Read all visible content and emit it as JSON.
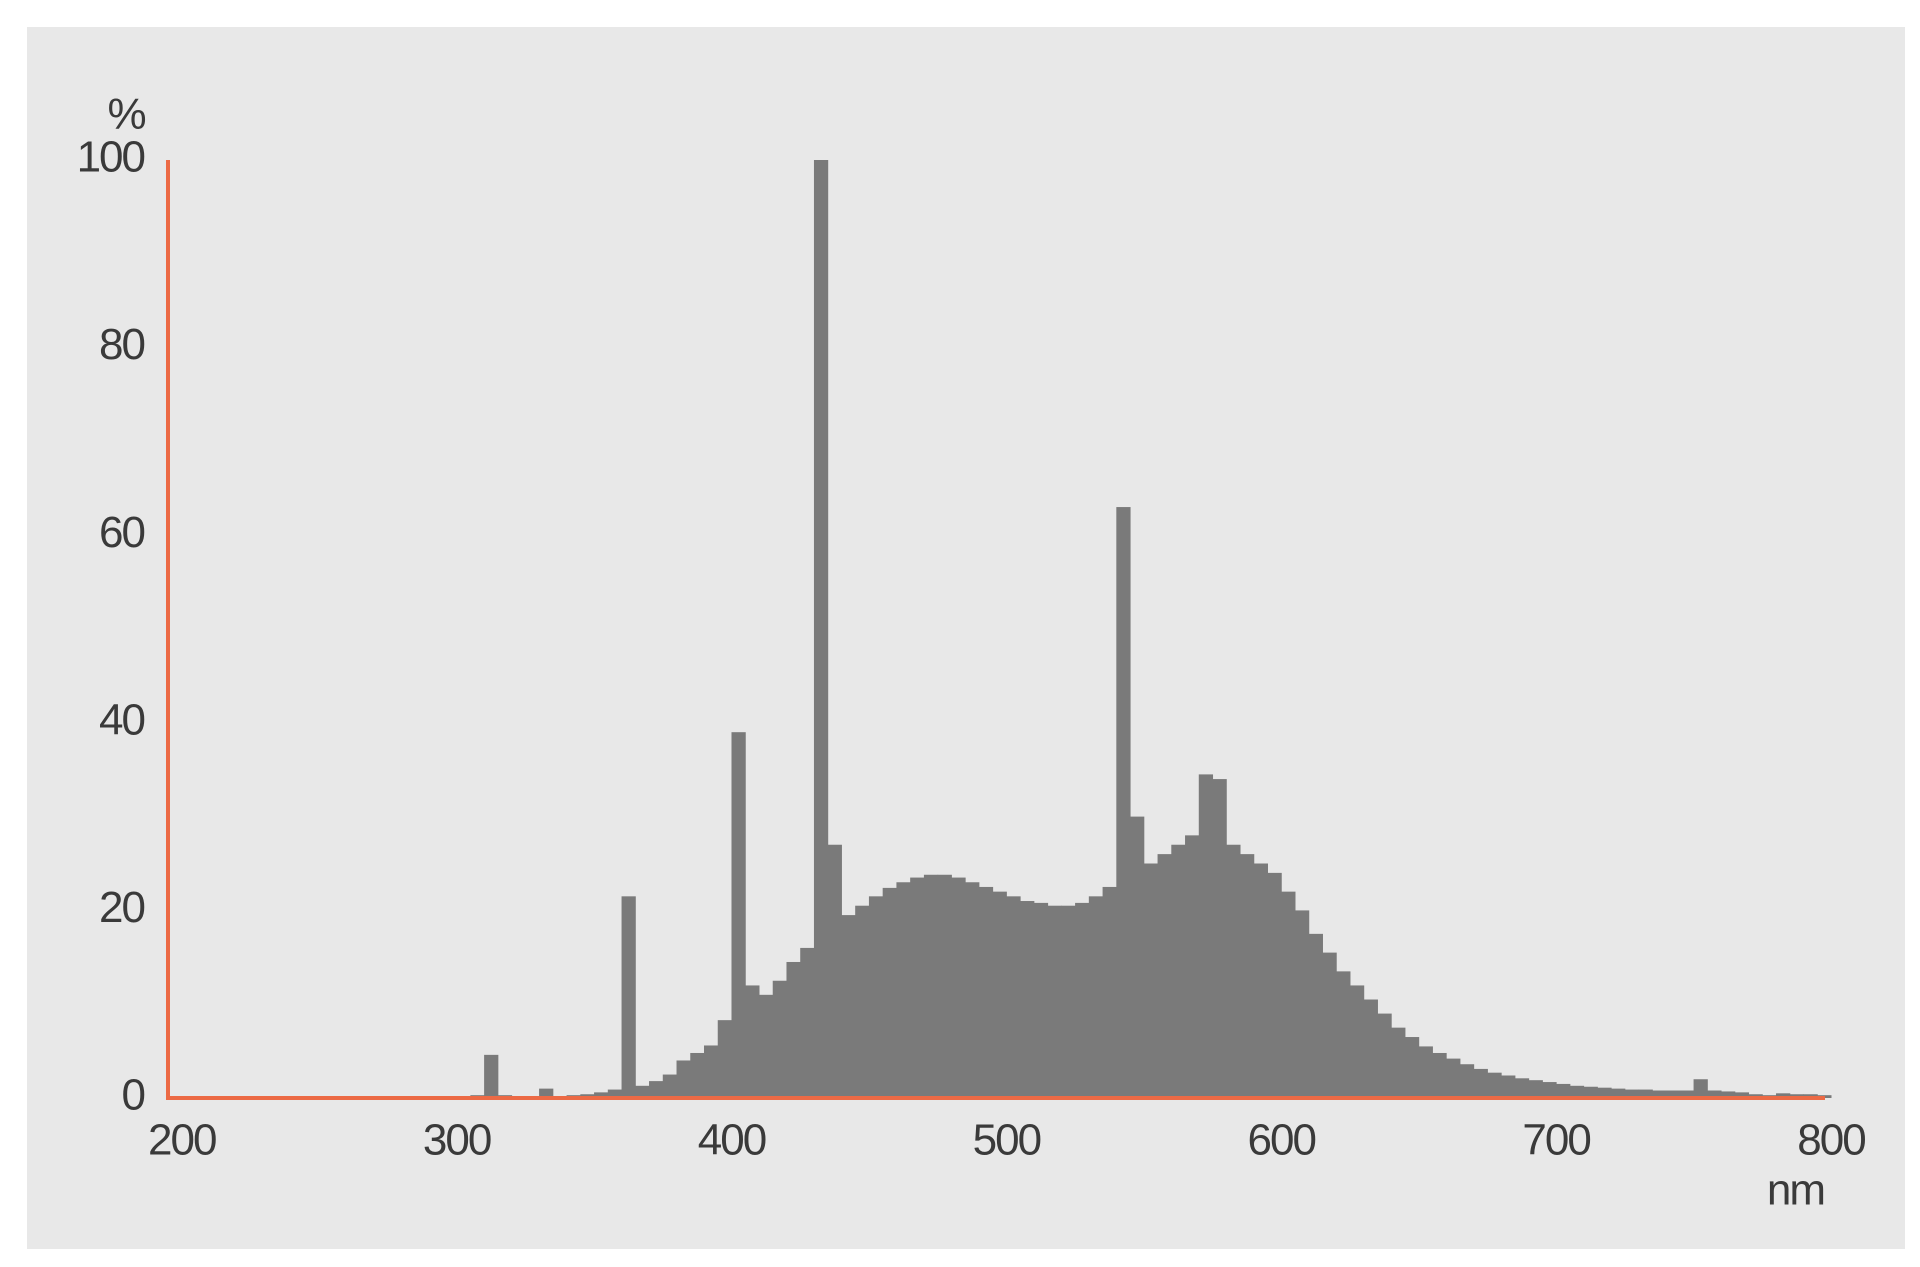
{
  "chart_data": {
    "type": "histogram",
    "ylabel": "%",
    "xlabel": "nm",
    "color": "#7a7a7a",
    "axis_color": "#ec6a45",
    "bins": [
      300,
      305,
      310,
      315,
      320,
      325,
      330,
      335,
      340,
      345,
      350,
      355,
      360,
      365,
      370,
      375,
      380,
      385,
      390,
      395,
      400,
      405,
      410,
      415,
      420,
      425,
      430,
      435,
      440,
      445,
      450,
      455,
      460,
      465,
      470,
      475,
      480,
      485,
      490,
      495,
      500,
      505,
      510,
      515,
      520,
      525,
      530,
      535,
      540,
      545,
      550,
      555,
      560,
      565,
      570,
      575,
      580,
      585,
      590,
      595,
      600,
      605,
      610,
      615,
      620,
      625,
      630,
      635,
      640,
      645,
      650,
      655,
      660,
      665,
      670,
      675,
      680,
      685,
      690,
      695,
      700,
      705,
      710,
      715,
      720,
      725,
      730,
      735,
      740,
      745,
      750,
      755,
      760,
      765,
      770,
      775,
      780,
      785,
      790,
      795,
      800
    ],
    "values": [
      0.2,
      0.3,
      4.6,
      0.3,
      0.2,
      0.2,
      1.0,
      0.2,
      0.3,
      0.4,
      0.6,
      0.9,
      21.5,
      1.3,
      1.8,
      2.5,
      4,
      4.8,
      5.6,
      8.3,
      39,
      12,
      11,
      12.5,
      14.5,
      16,
      100,
      27,
      19.5,
      20.5,
      21.5,
      22.4,
      23,
      23.5,
      23.8,
      23.8,
      23.5,
      23,
      22.5,
      22,
      21.5,
      21,
      20.8,
      20.5,
      20.5,
      20.8,
      21.5,
      22.5,
      63,
      30,
      25,
      26,
      27,
      28,
      34.5,
      34,
      27,
      26,
      25,
      24,
      22,
      20,
      17.5,
      15.5,
      13.5,
      12,
      10.5,
      9,
      7.5,
      6.5,
      5.5,
      4.8,
      4.2,
      3.6,
      3.1,
      2.7,
      2.4,
      2.1,
      1.9,
      1.7,
      1.5,
      1.3,
      1.2,
      1.1,
      1.0,
      0.9,
      0.9,
      0.8,
      0.8,
      0.8,
      2.0,
      0.8,
      0.7,
      0.6,
      0.4,
      0.3,
      0.5,
      0.4,
      0.4,
      0.3
    ],
    "xlim": [
      195,
      800
    ],
    "xticks": [
      200,
      300,
      400,
      500,
      600,
      700,
      800
    ],
    "ylim": [
      0,
      100
    ],
    "yticks": [
      0,
      20,
      40,
      60,
      80,
      100
    ]
  }
}
